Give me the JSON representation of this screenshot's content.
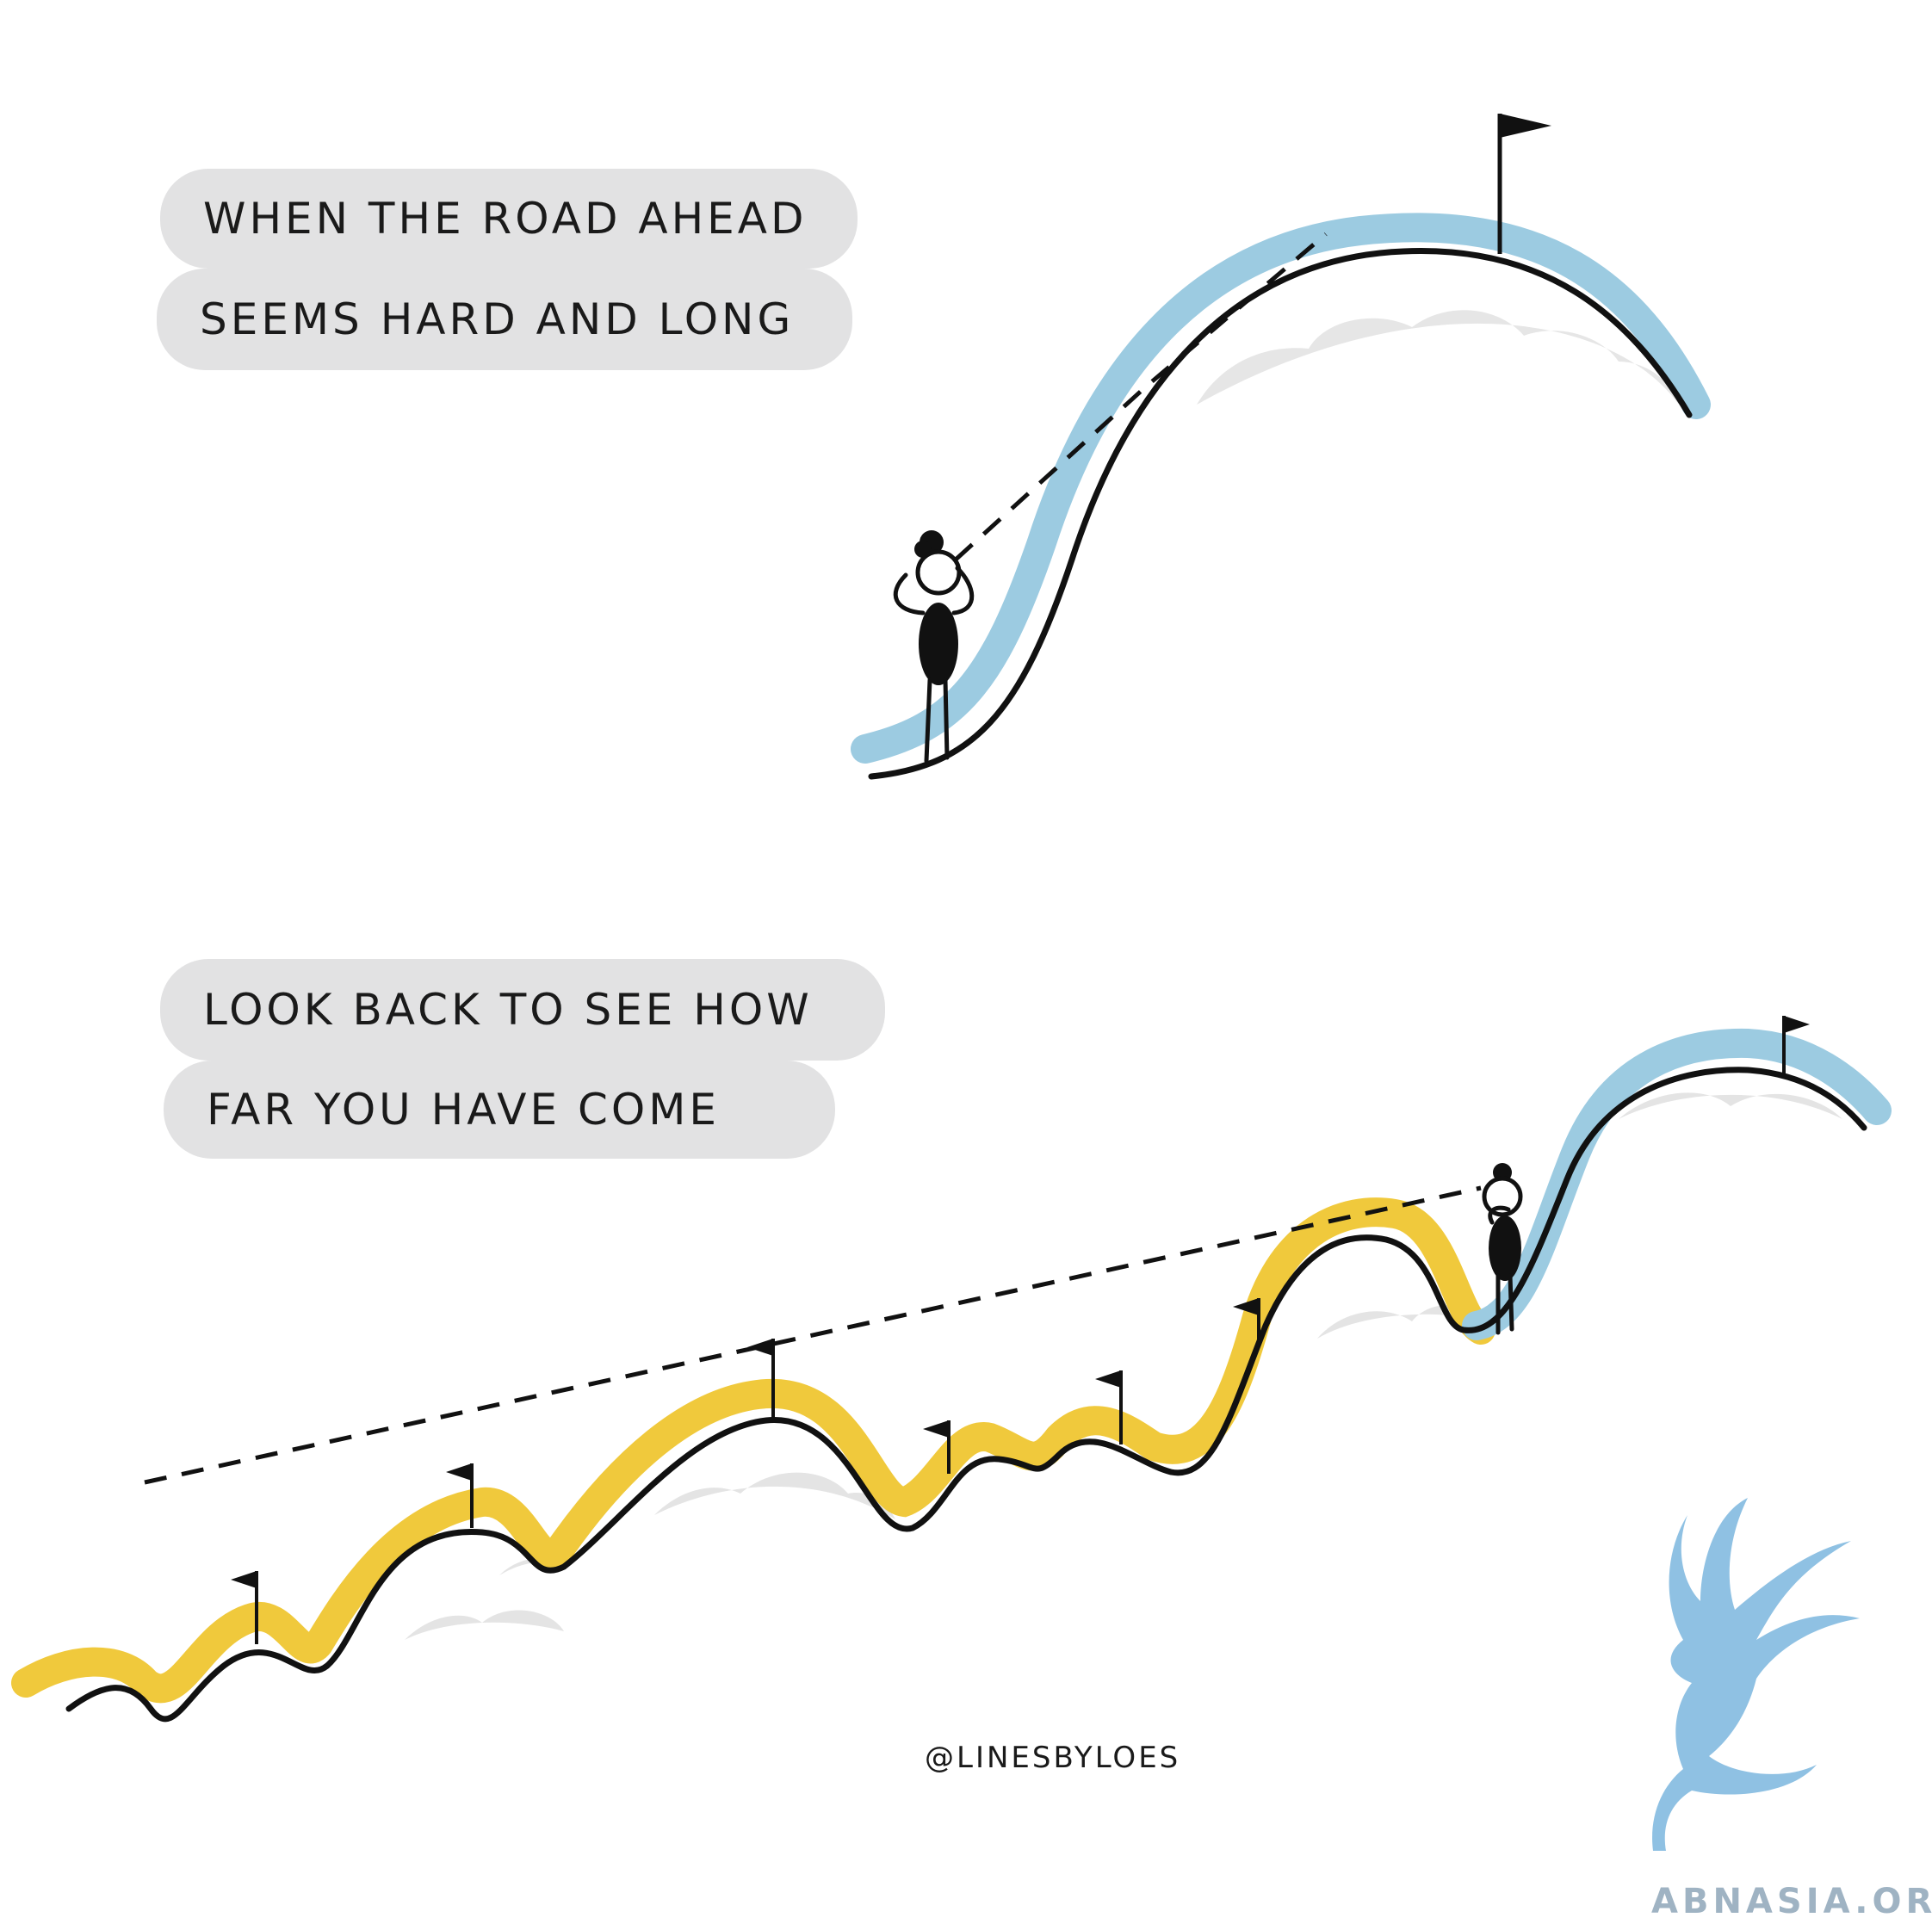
{
  "panel_top": {
    "caption_line1": "WHEN THE ROAD AHEAD",
    "caption_line2": "SEEMS HARD AND LONG"
  },
  "panel_bottom": {
    "caption_line1": "LOOK BACK TO SEE HOW",
    "caption_line2": "FAR YOU HAVE COME"
  },
  "credit": "@LINESBYLOES",
  "watermark": "ABNASIA.ORG",
  "colors": {
    "road_ahead": "#9ccbe1",
    "road_behind": "#f0c93c",
    "ground_line": "#111111",
    "cloud_shadow": "#e4e4e4",
    "caption_bg": "#e2e2e3",
    "watermark": "#8fc1e3"
  }
}
